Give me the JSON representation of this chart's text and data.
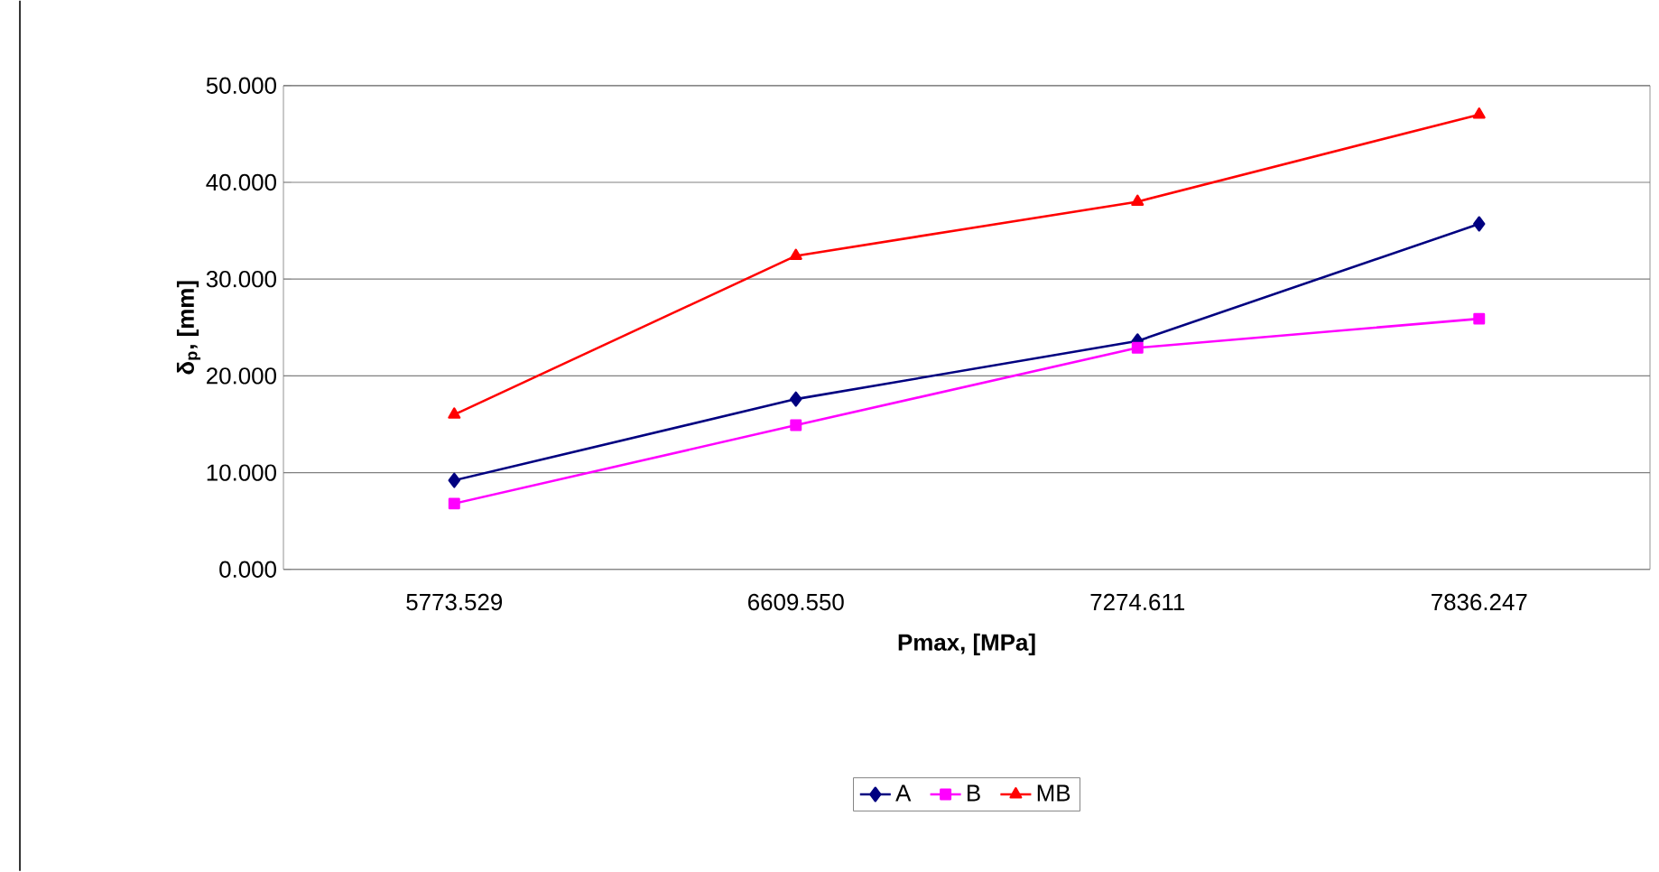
{
  "chart_data": {
    "type": "line",
    "xlabel": "Pmax, [MPa]",
    "ylabel": "δ$_{p}$, [mm]",
    "categories": [
      "5773.529",
      "6609.550",
      "7274.611",
      "7836.247"
    ],
    "ylim": [
      0,
      50
    ],
    "yticks": [
      {
        "value": 0,
        "label": "0.000"
      },
      {
        "value": 10,
        "label": "10.000"
      },
      {
        "value": 20,
        "label": "20.000"
      },
      {
        "value": 30,
        "label": "30.000"
      },
      {
        "value": 40,
        "label": "40.000"
      },
      {
        "value": 50,
        "label": "50.000"
      }
    ],
    "grid": "y",
    "legend": "bottom",
    "line_style": "solid",
    "series": [
      {
        "name": "A",
        "color": "#000080",
        "marker": "diamond",
        "values": [
          9.2,
          17.6,
          23.6,
          35.7
        ]
      },
      {
        "name": "B",
        "color": "#ff00ff",
        "marker": "square",
        "values": [
          6.8,
          14.9,
          22.9,
          25.9
        ]
      },
      {
        "name": "MB",
        "color": "#ff0000",
        "marker": "triangle",
        "values": [
          16.0,
          32.4,
          38.0,
          47.0
        ]
      }
    ]
  }
}
